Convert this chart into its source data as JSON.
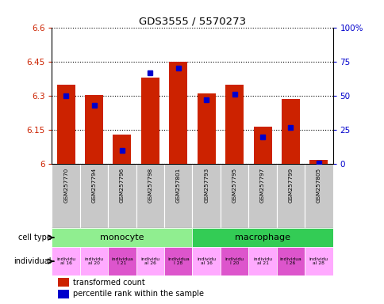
{
  "title": "GDS3555 / 5570273",
  "samples": [
    "GSM257770",
    "GSM257794",
    "GSM257796",
    "GSM257798",
    "GSM257801",
    "GSM257793",
    "GSM257795",
    "GSM257797",
    "GSM257799",
    "GSM257805"
  ],
  "red_values": [
    6.35,
    6.305,
    6.13,
    6.38,
    6.45,
    6.31,
    6.35,
    6.165,
    6.285,
    6.02
  ],
  "blue_values": [
    50,
    43,
    10,
    67,
    70,
    47,
    51,
    20,
    27,
    1
  ],
  "ylim_left": [
    6.0,
    6.6
  ],
  "ylim_right": [
    0,
    100
  ],
  "yticks_left": [
    6.0,
    6.15,
    6.3,
    6.45,
    6.6
  ],
  "ytick_labels_left": [
    "6",
    "6.15",
    "6.3",
    "6.45",
    "6.6"
  ],
  "yticks_right": [
    0,
    25,
    50,
    75,
    100
  ],
  "ytick_labels_right": [
    "0",
    "25",
    "50",
    "75",
    "100%"
  ],
  "cell_types": [
    {
      "label": "monocyte",
      "start": 0,
      "end": 5,
      "color": "#90ee90"
    },
    {
      "label": "macrophage",
      "start": 5,
      "end": 10,
      "color": "#33cc55"
    }
  ],
  "individual_colors": [
    "#ffaaff",
    "#ffaaff",
    "#dd55cc",
    "#ffaaff",
    "#dd55cc",
    "#ffaaff",
    "#dd55cc",
    "#ffaaff",
    "#dd55cc",
    "#ffaaff"
  ],
  "individual_display": [
    "individu\nal 16",
    "individu\nal 20",
    "individua\nl 21",
    "individu\nal 26",
    "individua\nl 28",
    "individu\nal 16",
    "individu\nl 20",
    "individu\nal 21",
    "individua\nl 26",
    "individu\nal 28"
  ],
  "bar_color": "#cc2200",
  "marker_color": "#0000cc",
  "base_value": 6.0,
  "bar_width": 0.65,
  "gridline_color": "black",
  "gridline_style": "dotted",
  "axis_label_color_left": "#cc2200",
  "axis_label_color_right": "#0000cc",
  "legend_red_label": "transformed count",
  "legend_blue_label": "percentile rank within the sample",
  "cell_type_label": "cell type",
  "individual_label": "individual",
  "sample_bg_color": "#c8c8c8"
}
